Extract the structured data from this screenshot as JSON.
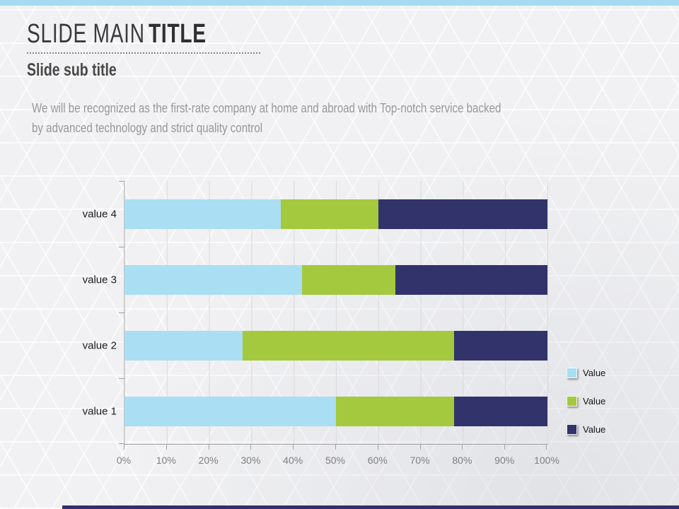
{
  "slide": {
    "title_regular": "SLIDE MAIN",
    "title_bold": "TITLE",
    "subtitle": "Slide sub title",
    "body_lines": [
      "We will be recognized as the first-rate company at home and abroad with Top-notch service backed",
      "by advanced technology and strict quality control"
    ]
  },
  "colors": {
    "top_bar": "#a5dbf0",
    "bottom_bar": "#30316a",
    "grid": "#d9d9d9",
    "axis": "#a3a3a3"
  },
  "chart_data": {
    "type": "bar",
    "orientation": "horizontal-stacked-100",
    "title": "",
    "xlabel": "",
    "ylabel": "",
    "xlim": [
      0,
      100
    ],
    "grid": true,
    "legend_position": "right",
    "categories": [
      "value 4",
      "value 3",
      "value 2",
      "value 1"
    ],
    "series": [
      {
        "name": "Value",
        "color": "#aadef3",
        "values": [
          37,
          42,
          28,
          50
        ]
      },
      {
        "name": "Value",
        "color": "#a4c93e",
        "values": [
          23,
          22,
          50,
          28
        ]
      },
      {
        "name": "Value",
        "color": "#32336b",
        "values": [
          40,
          36,
          22,
          22
        ]
      }
    ],
    "x_ticks": [
      "0%",
      "10%",
      "20%",
      "30%",
      "40%",
      "50%",
      "60%",
      "70%",
      "80%",
      "90%",
      "100%"
    ]
  }
}
